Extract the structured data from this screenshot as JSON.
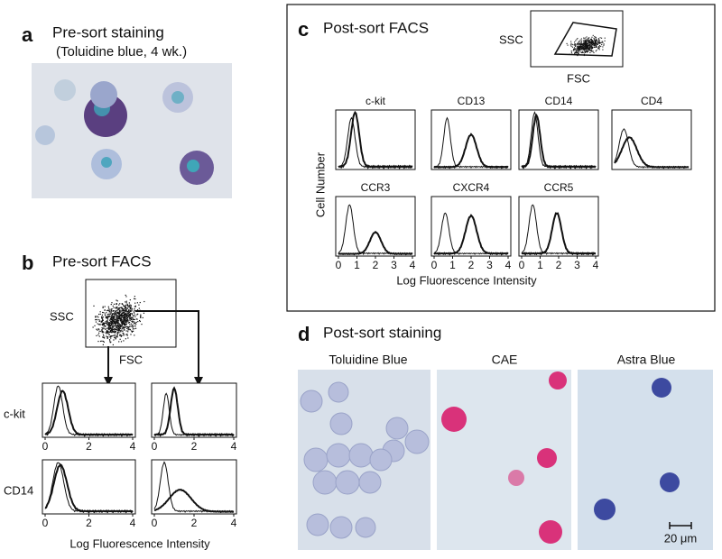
{
  "a": {
    "label": "a",
    "title": "Pre-sort staining",
    "subtitle": "(Toluidine blue, 4 wk.)"
  },
  "b": {
    "label": "b",
    "title": "Pre-sort FACS",
    "scatter": {
      "y_label": "SSC",
      "x_label": "FSC"
    },
    "rows": [
      "c-kit",
      "CD14"
    ],
    "ticks": [
      0,
      2,
      4
    ],
    "x_label": "Log Fluorescence Intensity"
  },
  "c": {
    "label": "c",
    "title": "Post-sort FACS",
    "scatter": {
      "y_label": "SSC",
      "x_label": "FSC"
    },
    "markers": [
      "c-kit",
      "CD13",
      "CD14",
      "CD4",
      "CCR3",
      "CXCR4",
      "CCR5"
    ],
    "y_label": "Cell Number",
    "ticks": [
      0,
      1,
      2,
      3,
      4
    ],
    "x_label": "Log Fluorescence Intensity"
  },
  "d": {
    "label": "d",
    "title": "Post-sort staining",
    "images": [
      "Toluidine Blue",
      "CAE",
      "Astra Blue"
    ],
    "scale_bar": "20 μm"
  }
}
